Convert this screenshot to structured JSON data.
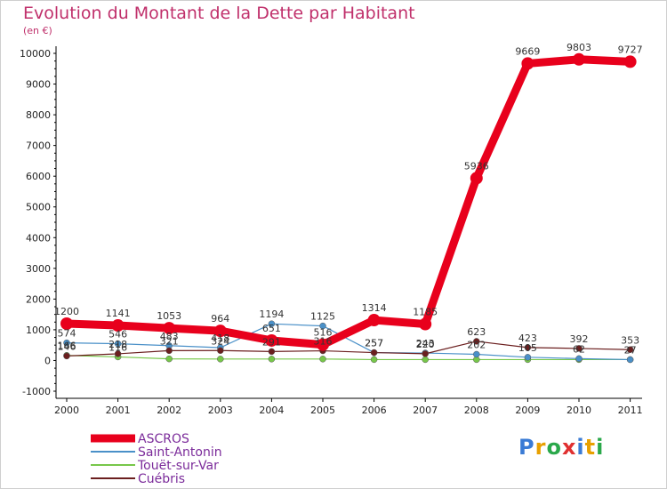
{
  "chart_data": {
    "type": "line",
    "title": "Evolution du Montant de la Dette par Habitant",
    "subtitle": "(en €)",
    "xlabel": "",
    "ylabel": "",
    "ylim": [
      -1000,
      10000
    ],
    "ytick_values": [
      -1000,
      0,
      1000,
      2000,
      3000,
      4000,
      5000,
      6000,
      7000,
      8000,
      9000,
      10000
    ],
    "categories": [
      "2000",
      "2001",
      "2002",
      "2003",
      "2004",
      "2005",
      "2006",
      "2007",
      "2008",
      "2009",
      "2010",
      "2011"
    ],
    "legend_position": "bottom-left",
    "grid": false,
    "series": [
      {
        "name": "ASCROS",
        "color": "#e8001c",
        "values": [
          1200,
          1141,
          1053,
          964,
          651,
          516,
          1314,
          1185,
          5936,
          9669,
          9803,
          9727
        ],
        "labels": [
          "1200",
          "1141",
          "1053",
          "964",
          "651",
          "516",
          "1314",
          "1185",
          "5936",
          "9669",
          "9803",
          "9727"
        ]
      },
      {
        "name": "Saint-Antonin",
        "color": "#4a90c8",
        "values": [
          574,
          546,
          483,
          418,
          1194,
          1125,
          257,
          243,
          202,
          105,
          62,
          27
        ],
        "labels": [
          "574",
          "546",
          "483",
          "418",
          "1194",
          "1125",
          "257",
          "243",
          "202",
          "105",
          "62",
          "27"
        ]
      },
      {
        "name": "Touët-sur-Var",
        "color": "#77c74a",
        "values": [
          166,
          116,
          52,
          47,
          47,
          47,
          30,
          30,
          30,
          30,
          30,
          30
        ],
        "labels": [
          "166",
          "116",
          "",
          "",
          "",
          "",
          "",
          "",
          "",
          "",
          "",
          ""
        ]
      },
      {
        "name": "Cuébris",
        "color": "#6b1f1f",
        "values": [
          146,
          218,
          321,
          324,
          291,
          316,
          257,
          220,
          623,
          423,
          392,
          353
        ],
        "labels": [
          "146",
          "218",
          "321",
          "324",
          "291",
          "316",
          "257",
          "220",
          "623",
          "423",
          "392",
          "353"
        ]
      }
    ]
  },
  "brand": {
    "logo_text": "Proxiti"
  }
}
